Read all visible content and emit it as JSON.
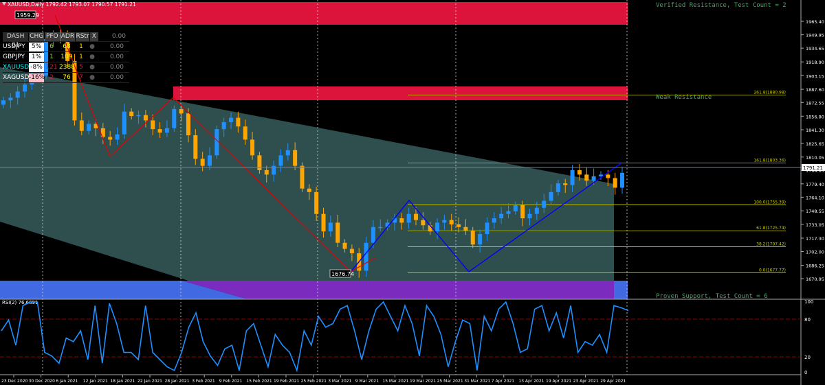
{
  "header": {
    "symbol_info": "XAUUSD,Daily 1792.42 1793.07 1790.57 1791.21"
  },
  "dash": {
    "header": [
      "DASH 01",
      "CHG",
      "PFO",
      "ADR",
      "RStr",
      "X",
      "0.00"
    ],
    "rows": [
      {
        "sym": "USDJPY",
        "chg": "5%",
        "pfo": "6",
        "adr": "68",
        "rstr": "1",
        "val": "0.00"
      },
      {
        "sym": "GBPJPY",
        "chg": "1%",
        "pfo": "1",
        "adr": "109",
        "rstr": "1",
        "val": "0.00"
      },
      {
        "sym": "XAUUSD",
        "chg": "-8%",
        "pfo": "121",
        "adr": "2388",
        "rstr": "5",
        "val": "0.00"
      },
      {
        "sym": "XAGUSD",
        "chg": "-16%",
        "pfo": "2",
        "adr": "76",
        "rstr": "7",
        "val": "0.00"
      }
    ]
  },
  "zones": {
    "verified_resistance": "Verified Resistance, Test Count = 2",
    "weak_resistance": "Weak Resistance",
    "proven_support": "Proven Support, Test Count = 6"
  },
  "fib": [
    {
      "label": "261.8(1880.98)",
      "price": 1880.98
    },
    {
      "label": "161.8(1803.36)",
      "price": 1803.36
    },
    {
      "label": "100.0(1755.39)",
      "price": 1755.39
    },
    {
      "label": "61.8(1725.74)",
      "price": 1725.74
    },
    {
      "label": "38.2(1707.42)",
      "price": 1707.42
    },
    {
      "label": "0.0(1677.77)",
      "price": 1677.77
    }
  ],
  "price_labels": {
    "high": "1959.29",
    "low": "1676.74",
    "current": "1791.21"
  },
  "price_axis": [
    "1965.40",
    "1949.95",
    "1934.65",
    "1918.90",
    "1903.15",
    "1887.60",
    "1872.55",
    "1856.80",
    "1841.30",
    "1825.65",
    "1810.05",
    "1794.85",
    "1779.40",
    "1764.10",
    "1748.55",
    "1733.05",
    "1717.30",
    "1702.00",
    "1686.25",
    "1670.95"
  ],
  "rsi": {
    "label": "RSI(2) 76.6691",
    "levels": [
      "100",
      "80",
      "20",
      "0"
    ]
  },
  "time_axis": [
    "23 Dec 2020",
    "30 Dec 2020",
    "6 Jan 2021",
    "12 Jan 2021",
    "18 Jan 2021",
    "22 Jan 2021",
    "28 Jan 2021",
    "3 Feb 2021",
    "9 Feb 2021",
    "15 Feb 2021",
    "19 Feb 2021",
    "25 Feb 2021",
    "3 Mar 2021",
    "9 Mar 2021",
    "15 Mar 2021",
    "19 Mar 2021",
    "25 Mar 2021",
    "31 Mar 2021",
    "7 Apr 2021",
    "13 Apr 2021",
    "19 Apr 2021",
    "23 Apr 2021",
    "29 Apr 2021"
  ],
  "colors": {
    "up": "#1e90ff",
    "down": "#ffa500",
    "zone_red": "#dc143c",
    "channel": "#2f4f4f",
    "support_blue": "#4169e1",
    "support_purple": "#7b2cbf",
    "fib": "#c8c800",
    "zigzag_red": "#e00000",
    "zigzag_blue": "#0000ff",
    "rsi_line": "#1e90ff"
  }
}
